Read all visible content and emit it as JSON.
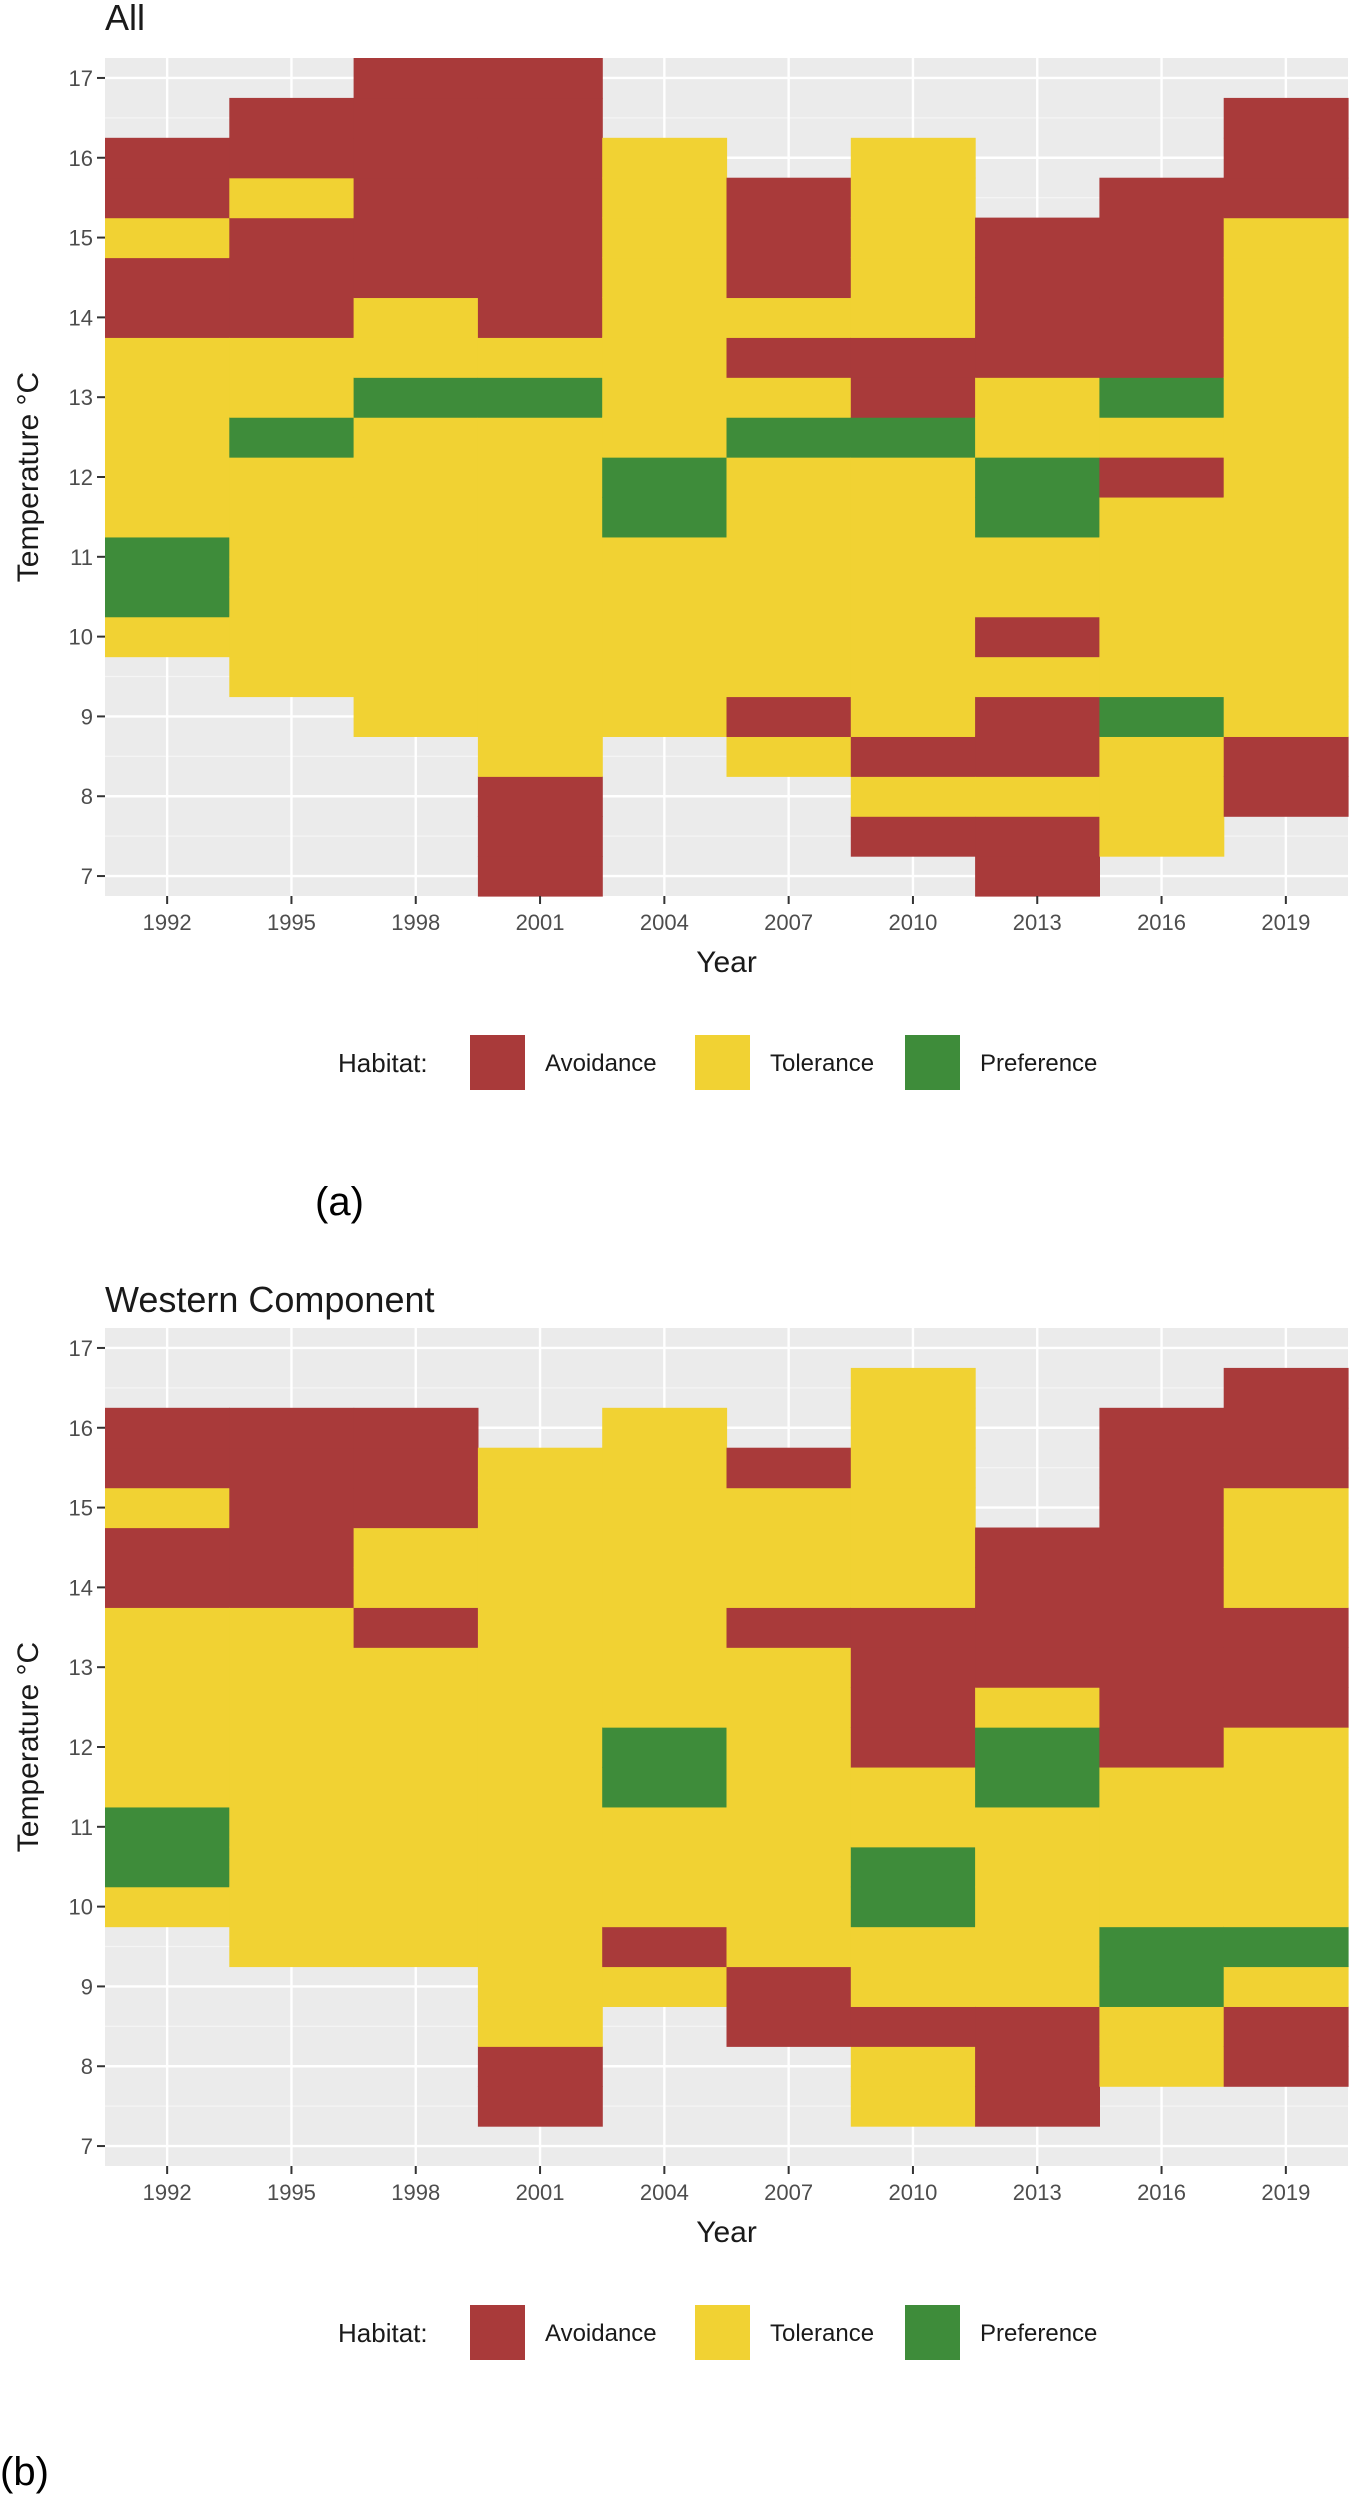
{
  "labels": {
    "a": "(a)",
    "b": "(b)"
  },
  "colors": {
    "Avoidance": "#a93a3a",
    "Tolerance": "#f1d233",
    "Preference": "#3e8c3a",
    "panel_bg": "#ebebeb",
    "grid_major": "#ffffff",
    "grid_minor": "#f5f5f5"
  },
  "chart_data": [
    {
      "type": "heatmap",
      "title": "All",
      "xlabel": "Year",
      "ylabel": "Temperature °C",
      "x_ticks": [
        "1992",
        "1995",
        "1998",
        "2001",
        "2004",
        "2007",
        "2010",
        "2013",
        "2016",
        "2019"
      ],
      "y_ticks": [
        7,
        8,
        9,
        10,
        11,
        12,
        13,
        14,
        15,
        16,
        17
      ],
      "ylim": [
        6.75,
        17.25
      ],
      "cell_height": 0.5,
      "legend": {
        "title": "Habitat:",
        "entries": [
          "Avoidance",
          "Tolerance",
          "Preference"
        ],
        "position": "bottom"
      },
      "columns": [
        {
          "year": "1992",
          "cells": "10:T 10.5:P 11:P 11.5:T 12:T 12.5:T 13:T 13.5:T 14:A 14.5:A 15:T 15.5:A 16:A"
        },
        {
          "year": "1995",
          "cells": "9.5:T 10:T 10.5:T 11:T 11.5:T 12:T 12.5:P 13:T 13.5:T 14:A 14.5:A 15:A 15.5:T 16:A 16.5:A"
        },
        {
          "year": "1998",
          "cells": "9:T 9.5:T 10:T 10.5:T 11:T 11.5:T 12:T 12.5:T 13:P 13.5:T 14:T 14.5:A 15:A 15.5:A 16:A 16.5:A 17:A"
        },
        {
          "year": "2001",
          "cells": "7:A 7.5:A 8:A 8.5:T 9:T 9.5:T 10:T 10.5:T 11:T 11.5:T 12:T 12.5:T 13:P 13.5:T 14:A 14.5:A 15:A 15.5:A 16:A 16.5:A 17:A"
        },
        {
          "year": "2004",
          "cells": "9:T 9.5:T 10:T 10.5:T 11:T 11.5:P 12:P 12.5:T 13:T 13.5:T 14:T 14.5:T 15:T 15.5:T 16:T"
        },
        {
          "year": "2007",
          "cells": "8.5:T 9:A 9.5:T 10:T 10.5:T 11:T 11.5:T 12:T 12.5:P 13:T 13.5:A 14:T 14.5:A 15:A 15.5:A"
        },
        {
          "year": "2010",
          "cells": "7.5:A 8:T 8.5:A 9:T 9.5:T 10:T 10.5:T 11:T 11.5:T 12:T 12.5:P 13:A 13.5:A 14:T 14.5:T 15:T 15.5:T 16:T"
        },
        {
          "year": "2013",
          "cells": "7:A 7.5:A 8:T 8.5:A 9:A 9.5:T 10:A 10.5:T 11:T 11.5:P 12:P 12.5:T 13:T 13.5:A 14:A 14.5:A 15:A"
        },
        {
          "year": "2016",
          "cells": "7.5:T 8:T 8.5:T 9:P 9.5:T 10:T 10.5:T 11:T 11.5:T 12:A 12.5:T 13:P 13.5:A 14:A 14.5:A 15:A 15.5:A"
        },
        {
          "year": "2019",
          "cells": "8:A 8.5:A 9:T 9.5:T 10:T 10.5:T 11:T 11.5:T 12:T 12.5:T 13:T 13.5:T 14:T 14.5:T 15:T 15.5:A 16:A 16.5:A"
        }
      ]
    },
    {
      "type": "heatmap",
      "title": "Western Component",
      "xlabel": "Year",
      "ylabel": "Temperature °C",
      "x_ticks": [
        "1992",
        "1995",
        "1998",
        "2001",
        "2004",
        "2007",
        "2010",
        "2013",
        "2016",
        "2019"
      ],
      "y_ticks": [
        7,
        8,
        9,
        10,
        11,
        12,
        13,
        14,
        15,
        16,
        17
      ],
      "ylim": [
        6.75,
        17.25
      ],
      "cell_height": 0.5,
      "legend": {
        "title": "Habitat:",
        "entries": [
          "Avoidance",
          "Tolerance",
          "Preference"
        ],
        "position": "bottom"
      },
      "columns": [
        {
          "year": "1992",
          "cells": "10:T 10.5:P 11:P 11.5:T 12:T 12.5:T 13:T 13.5:T 14:A 14.5:A 15:T 15.5:A 16:A"
        },
        {
          "year": "1995",
          "cells": "9.5:T 10:T 10.5:T 11:T 11.5:T 12:T 12.5:T 13:T 13.5:T 14:A 14.5:A 15:A 15.5:A 16:A"
        },
        {
          "year": "1998",
          "cells": "9.5:T 10:T 10.5:T 11:T 11.5:T 12:T 12.5:T 13:T 13.5:A 14:T 14.5:T 15:A 15.5:A 16:A"
        },
        {
          "year": "2001",
          "cells": "7.5:A 8:A 8.5:T 9:T 9.5:T 10:T 10.5:T 11:T 11.5:T 12:T 12.5:T 13:T 13.5:T 14:T 14.5:T 15:T 15.5:T"
        },
        {
          "year": "2004",
          "cells": "9:T 9.5:A 10:T 10.5:T 11:T 11.5:P 12:P 12.5:T 13:T 13.5:T 14:T 14.5:T 15:T 15.5:T 16:T"
        },
        {
          "year": "2007",
          "cells": "8.5:A 9:A 9.5:T 10:T 10.5:T 11:T 11.5:T 12:T 12.5:T 13:T 13.5:A 14:T 14.5:T 15:T 15.5:A"
        },
        {
          "year": "2010",
          "cells": "7.5:T 8:T 8.5:A 9:T 9.5:T 10:P 10.5:P 11:T 11.5:T 12:A 12.5:A 13:A 13.5:A 14:T 14.5:T 15:T 15.5:T 16:T 16.5:T"
        },
        {
          "year": "2013",
          "cells": "7.5:A 8:A 8.5:A 9:T 9.5:T 10:T 10.5:T 11:T 11.5:P 12:P 12.5:T 13:A 13.5:A 14:A 14.5:A"
        },
        {
          "year": "2016",
          "cells": "8:T 8.5:T 9:P 9.5:P 10:T 10.5:T 11:T 11.5:T 12:A 12.5:A 13:A 13.5:A 14:A 14.5:A 15:A 15.5:A 16:A"
        },
        {
          "year": "2019",
          "cells": "8:A 8.5:A 9:T 9.5:P 10:T 10.5:T 11:T 11.5:T 12:T 12.5:A 13:A 13.5:A 14:T 14.5:T 15:T 15.5:A 16:A 16.5:A"
        }
      ]
    }
  ]
}
